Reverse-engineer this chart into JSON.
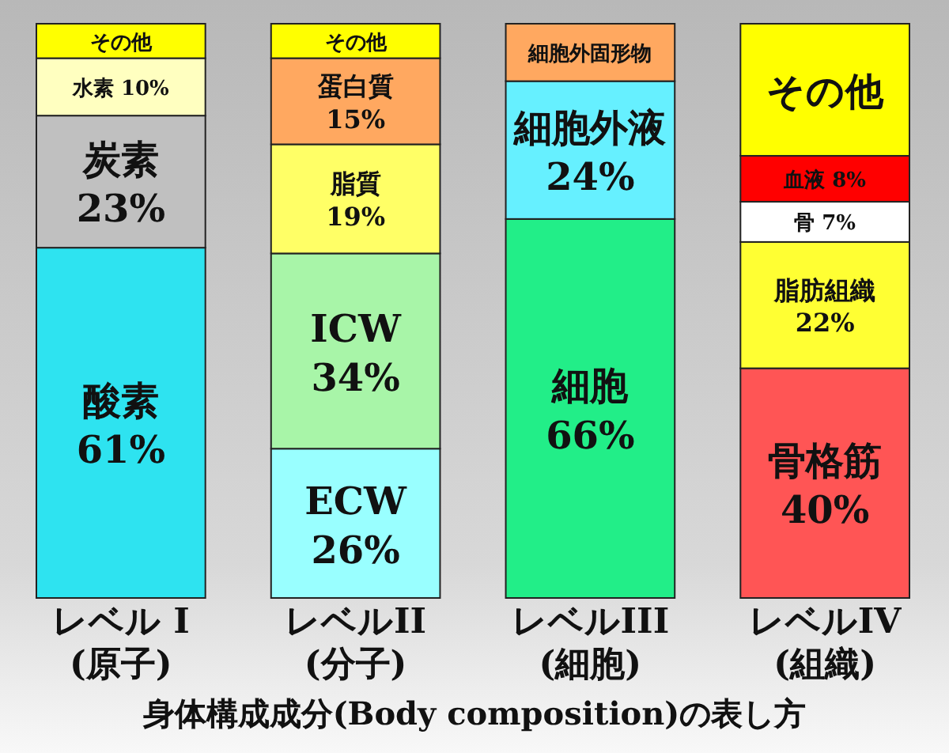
{
  "chart_data": {
    "type": "bar",
    "stacked": true,
    "title": "身体構成成分(Body composition)の表し方",
    "categories": [
      "レベル I\n(原子)",
      "レベルII\n(分子)",
      "レベルIII\n(細胞)",
      "レベルIV\n(組織)"
    ],
    "legend": false,
    "series": [
      {
        "name": "酸素",
        "color": "#2ee3f0",
        "values": [
          61,
          null,
          null,
          null
        ],
        "value_labels": [
          "61%",
          null,
          null,
          null
        ]
      },
      {
        "name": "炭素",
        "color": "#c0c0c0",
        "values": [
          23,
          null,
          null,
          null
        ],
        "value_labels": [
          "23%",
          null,
          null,
          null
        ]
      },
      {
        "name": "水素",
        "color": "#ffffc0",
        "values": [
          10,
          null,
          null,
          null
        ],
        "value_labels": [
          "10%",
          null,
          null,
          null
        ]
      },
      {
        "name": "その他",
        "color": "#ffff00",
        "values": [
          6,
          null,
          null,
          null
        ],
        "value_labels": [
          null,
          null,
          null,
          null
        ]
      },
      {
        "name": "ECW",
        "color": "#99ffff",
        "values": [
          null,
          26,
          null,
          null
        ],
        "value_labels": [
          null,
          "26%",
          null,
          null
        ]
      },
      {
        "name": "ICW",
        "color": "#a8f5a8",
        "values": [
          null,
          34,
          null,
          null
        ],
        "value_labels": [
          null,
          "34%",
          null,
          null
        ]
      },
      {
        "name": "脂質",
        "color": "#ffff66",
        "values": [
          null,
          19,
          null,
          null
        ],
        "value_labels": [
          null,
          "19%",
          null,
          null
        ]
      },
      {
        "name": "蛋白質",
        "color": "#ffa860",
        "values": [
          null,
          15,
          null,
          null
        ],
        "value_labels": [
          null,
          "15%",
          null,
          null
        ]
      },
      {
        "name": "その他",
        "color": "#ffff00",
        "values": [
          null,
          6,
          null,
          null
        ],
        "value_labels": [
          null,
          null,
          null,
          null
        ]
      },
      {
        "name": "細胞",
        "color": "#22ee88",
        "values": [
          null,
          null,
          66,
          null
        ],
        "value_labels": [
          null,
          null,
          "66%",
          null
        ]
      },
      {
        "name": "細胞外液",
        "color": "#66f0ff",
        "values": [
          null,
          null,
          24,
          null
        ],
        "value_labels": [
          null,
          null,
          "24%",
          null
        ]
      },
      {
        "name": "細胞外固形物",
        "color": "#ffa860",
        "values": [
          null,
          null,
          10,
          null
        ],
        "value_labels": [
          null,
          null,
          null,
          null
        ]
      },
      {
        "name": "骨格筋",
        "color": "#ff5555",
        "values": [
          null,
          null,
          null,
          40
        ],
        "value_labels": [
          null,
          null,
          null,
          "40%"
        ]
      },
      {
        "name": "脂肪組織",
        "color": "#ffff33",
        "values": [
          null,
          null,
          null,
          22
        ],
        "value_labels": [
          null,
          null,
          null,
          "22%"
        ]
      },
      {
        "name": "骨",
        "color": "#ffffff",
        "values": [
          null,
          null,
          null,
          7
        ],
        "value_labels": [
          null,
          null,
          null,
          "7%"
        ]
      },
      {
        "name": "血液",
        "color": "#ff0000",
        "values": [
          null,
          null,
          null,
          8
        ],
        "value_labels": [
          null,
          null,
          null,
          "8%"
        ]
      },
      {
        "name": "その他",
        "color": "#ffff00",
        "values": [
          null,
          null,
          null,
          23
        ],
        "value_labels": [
          null,
          null,
          null,
          null
        ]
      }
    ]
  }
}
